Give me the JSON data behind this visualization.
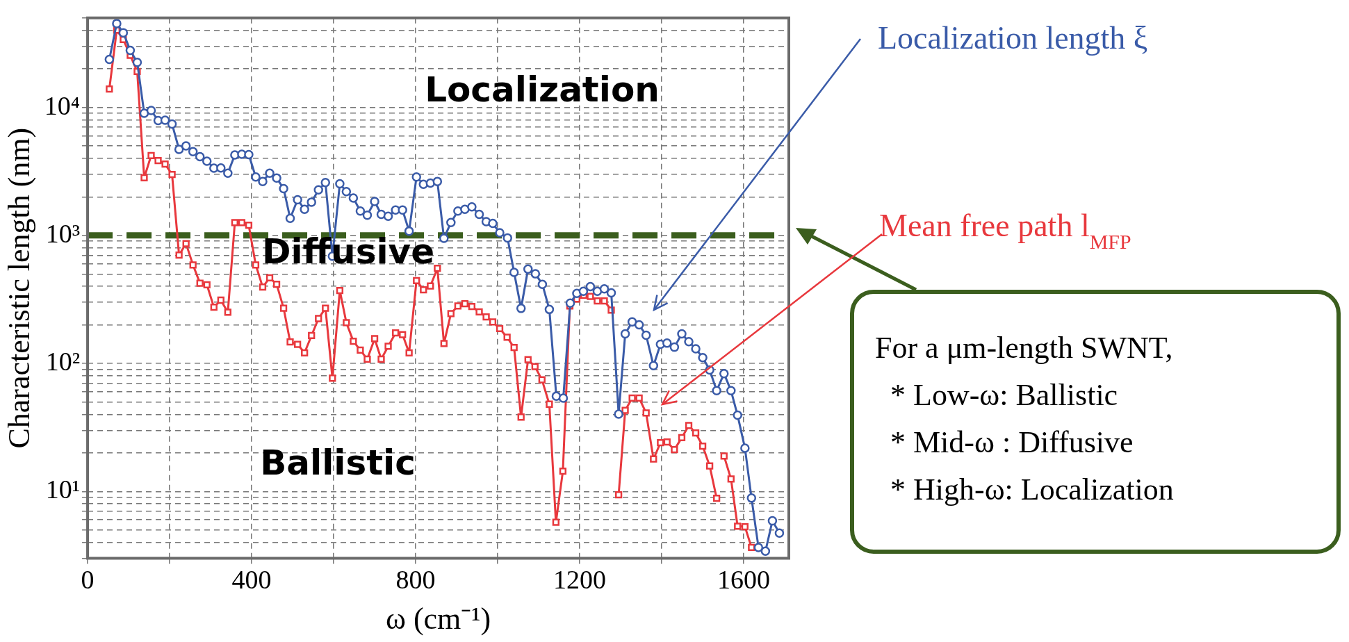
{
  "chart_data": {
    "type": "line",
    "xlabel": "ω (cm⁻¹)",
    "ylabel": "Characteristic length (nm)",
    "log": "y",
    "grid": true,
    "legend": false,
    "line_style": "solid",
    "xlim": [
      0,
      1710
    ],
    "xticks": [
      0,
      {
        "value": 200,
        "label": null
      },
      400,
      {
        "value": 600,
        "label": null
      },
      800,
      {
        "value": 1000,
        "label": null
      },
      1200,
      {
        "value": 1400,
        "label": null
      },
      1600
    ],
    "ylim": [
      3,
      50000
    ],
    "yticks": [
      {
        "value": 3,
        "label": null
      },
      {
        "value": 4,
        "label": null
      },
      {
        "value": 5,
        "label": null
      },
      {
        "value": 6,
        "label": null
      },
      {
        "value": 7,
        "label": null
      },
      {
        "value": 8,
        "label": null
      },
      {
        "value": 9,
        "label": null
      },
      {
        "value": 10,
        "label": "10¹"
      },
      {
        "value": 20,
        "label": null
      },
      {
        "value": 30,
        "label": null
      },
      {
        "value": 40,
        "label": null
      },
      {
        "value": 50,
        "label": null
      },
      {
        "value": 60,
        "label": null
      },
      {
        "value": 70,
        "label": null
      },
      {
        "value": 80,
        "label": null
      },
      {
        "value": 90,
        "label": null
      },
      {
        "value": 100,
        "label": "10²"
      },
      {
        "value": 200,
        "label": null
      },
      {
        "value": 300,
        "label": null
      },
      {
        "value": 400,
        "label": null
      },
      {
        "value": 500,
        "label": null
      },
      {
        "value": 600,
        "label": null
      },
      {
        "value": 700,
        "label": null
      },
      {
        "value": 800,
        "label": null
      },
      {
        "value": 900,
        "label": null
      },
      {
        "value": 1000,
        "label": "10³"
      },
      {
        "value": 2000,
        "label": null
      },
      {
        "value": 3000,
        "label": null
      },
      {
        "value": 4000,
        "label": null
      },
      {
        "value": 5000,
        "label": null
      },
      {
        "value": 6000,
        "label": null
      },
      {
        "value": 7000,
        "label": null
      },
      {
        "value": 8000,
        "label": null
      },
      {
        "value": 9000,
        "label": null
      },
      {
        "value": 10000,
        "label": "10⁴"
      },
      {
        "value": 20000,
        "label": null
      },
      {
        "value": 30000,
        "label": null
      },
      {
        "value": 40000,
        "label": null
      },
      {
        "value": 50000,
        "label": null
      }
    ],
    "series": [
      {
        "name": "Localization length ξ",
        "color": "#3a5ba8",
        "marker": "circle",
        "x": [
          53,
          71,
          87,
          104,
          121,
          138,
          155,
          172,
          189,
          206,
          223,
          240,
          257,
          274,
          291,
          308,
          325,
          342,
          359,
          376,
          393,
          410,
          427,
          444,
          461,
          478,
          494,
          512,
          529,
          546,
          563,
          580,
          597,
          615,
          631,
          648,
          665,
          682,
          700,
          716,
          733,
          751,
          768,
          784,
          802,
          819,
          836,
          853,
          869,
          886,
          903,
          920,
          937,
          955,
          972,
          988,
          1005,
          1024,
          1040,
          1057,
          1074,
          1092,
          1109,
          1126,
          1143,
          1160,
          1177,
          1193,
          1209,
          1226,
          1243,
          1260,
          1277,
          1295,
          1311,
          1328,
          1345,
          1362,
          1380,
          1397,
          1413,
          1431,
          1449,
          1466,
          1483,
          1500,
          1517,
          1534,
          1552,
          1569,
          1585,
          1603,
          1619,
          1636,
          1653,
          1670,
          1687
        ],
        "values": [
          23700,
          45200,
          38300,
          27900,
          22500,
          9000,
          9460,
          7900,
          7950,
          7410,
          4700,
          5000,
          4510,
          4120,
          3800,
          3350,
          3360,
          3060,
          4250,
          4300,
          4280,
          2860,
          2640,
          3060,
          2810,
          2320,
          1360,
          1900,
          1600,
          1820,
          2270,
          2590,
          687,
          2530,
          2200,
          1960,
          1550,
          1440,
          1840,
          1460,
          1410,
          1580,
          1580,
          1080,
          2860,
          2510,
          2560,
          2640,
          950,
          1260,
          1550,
          1600,
          1670,
          1460,
          1280,
          1240,
          1050,
          955,
          515,
          269,
          545,
          501,
          415,
          264,
          55.5,
          53.6,
          296,
          352,
          366,
          398,
          366,
          382,
          356,
          40.2,
          170,
          211,
          200,
          166,
          96,
          141,
          144,
          134,
          170,
          148,
          130,
          111,
          88.9,
          61.2,
          83.3,
          61.2,
          39.4,
          21.8,
          8.87,
          3.65,
          3.41,
          5.89,
          4.73
        ]
      },
      {
        "name": "Mean free path l$_{MFP}$",
        "color": "#e8383d",
        "marker": "square",
        "x": [
          53,
          71,
          87,
          104,
          121,
          138,
          155,
          172,
          189,
          206,
          223,
          240,
          257,
          274,
          291,
          308,
          325,
          342,
          359,
          376,
          393,
          410,
          427,
          444,
          461,
          478,
          494,
          512,
          529,
          546,
          563,
          580,
          597,
          615,
          631,
          648,
          665,
          682,
          700,
          716,
          733,
          751,
          768,
          784,
          802,
          819,
          836,
          853,
          869,
          886,
          903,
          920,
          937,
          955,
          972,
          988,
          1005,
          1023,
          1040,
          1057,
          1074,
          1091,
          1108,
          1126,
          1142,
          1159,
          1176,
          1193,
          1210,
          1226,
          1243,
          1260,
          1277,
          1286,
          1295,
          1311,
          1328,
          1345,
          1362,
          1380,
          1397,
          1413,
          1431,
          1449,
          1466,
          1483,
          1500,
          1517,
          1534,
          1543,
          1552,
          1569,
          1585,
          1603,
          1619
        ],
        "values": [
          13900,
          40100,
          33900,
          25500,
          19100,
          2820,
          4210,
          3840,
          3610,
          2990,
          702,
          863,
          588,
          423,
          411,
          275,
          312,
          251,
          1260,
          1260,
          1200,
          588,
          395,
          466,
          415,
          270,
          147,
          141,
          121,
          165,
          224,
          270,
          76.7,
          371,
          208,
          149,
          127,
          108,
          156,
          108,
          136,
          173,
          168,
          121,
          444,
          376,
          403,
          553,
          143,
          245,
          281,
          293,
          278,
          253,
          231,
          211,
          187,
          160,
          133,
          38.1,
          107,
          94.3,
          74.5,
          48,
          5.74,
          14.4,
          281,
          318,
          341,
          334,
          308,
          308,
          261,
          null,
          9.4,
          43,
          53.6,
          53.6,
          41,
          17.9,
          24.0,
          24.3,
          21.2,
          26.3,
          32.7,
          28.6,
          22.6,
          15.8,
          8.83,
          null,
          18.9,
          12.5,
          5.35,
          5.3,
          3.65
        ]
      }
    ],
    "ref_lines": [
      {
        "axis": "y",
        "value": 1000,
        "color": "#3b5e1e",
        "line_style": "dashed"
      }
    ],
    "annotations": [
      "Localization",
      "Diffusive",
      "Ballistic",
      "For a μm-length SWNT,",
      "  * Low-ω: Ballistic",
      "  * Mid-ω : Diffusive",
      "  * High-ω: Localization"
    ]
  }
}
